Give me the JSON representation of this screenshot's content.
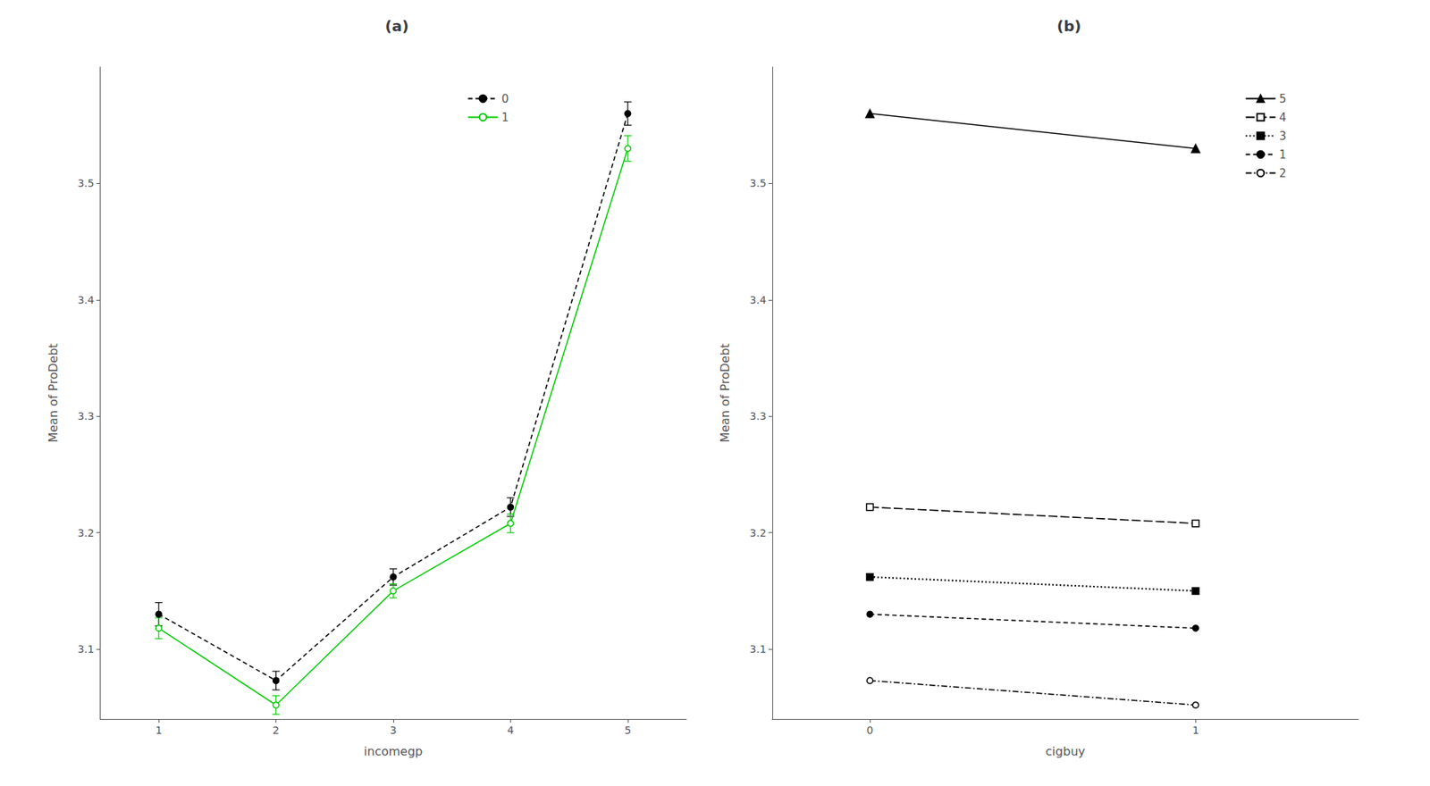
{
  "chart_data": [
    {
      "type": "line",
      "title": "(a)",
      "xlabel": "incomegp",
      "ylabel": "Mean of ProDebt",
      "x": [
        1,
        2,
        3,
        4,
        5
      ],
      "series": [
        {
          "name": "0",
          "color": "#000000",
          "values": [
            3.13,
            3.073,
            3.162,
            3.222,
            3.56
          ],
          "errors": [
            0.01,
            0.008,
            0.007,
            0.008,
            0.01
          ],
          "marker": "circle",
          "line_style": "dashed"
        },
        {
          "name": "1",
          "color": "#00cc00",
          "values": [
            3.118,
            3.052,
            3.15,
            3.208,
            3.53
          ],
          "errors": [
            0.009,
            0.008,
            0.006,
            0.008,
            0.011
          ],
          "marker": "circle_open",
          "line_style": "solid"
        }
      ],
      "xlim": [
        0.5,
        5.5
      ],
      "ylim": [
        3.04,
        3.6
      ],
      "xticks": [
        1,
        2,
        3,
        4,
        5
      ],
      "yticks": [
        3.1,
        3.2,
        3.3,
        3.4,
        3.5
      ],
      "legend": "upper right",
      "grid": false
    },
    {
      "type": "line",
      "title": "(b)",
      "xlabel": "cigbuy",
      "ylabel": "Mean of ProDebt",
      "x": [
        0,
        1
      ],
      "series": [
        {
          "name": "5",
          "color": "#000000",
          "values": [
            3.56,
            3.53
          ],
          "marker": "triangle",
          "line_style": "solid"
        },
        {
          "name": "4",
          "color": "#000000",
          "values": [
            3.222,
            3.208
          ],
          "marker": "square_open",
          "line_style": "longdash"
        },
        {
          "name": "3",
          "color": "#000000",
          "values": [
            3.162,
            3.15
          ],
          "marker": "square",
          "line_style": "dotted"
        },
        {
          "name": "1",
          "color": "#000000",
          "values": [
            3.13,
            3.118
          ],
          "marker": "circle",
          "line_style": "dashed"
        },
        {
          "name": "2",
          "color": "#000000",
          "values": [
            3.073,
            3.052
          ],
          "marker": "circle_open",
          "line_style": "dashdot"
        }
      ],
      "xlim": [
        -0.3,
        1.5
      ],
      "ylim": [
        3.04,
        3.6
      ],
      "xticks": [
        0,
        1
      ],
      "yticks": [
        3.1,
        3.2,
        3.3,
        3.4,
        3.5
      ],
      "legend": "upper right",
      "grid": false
    }
  ]
}
